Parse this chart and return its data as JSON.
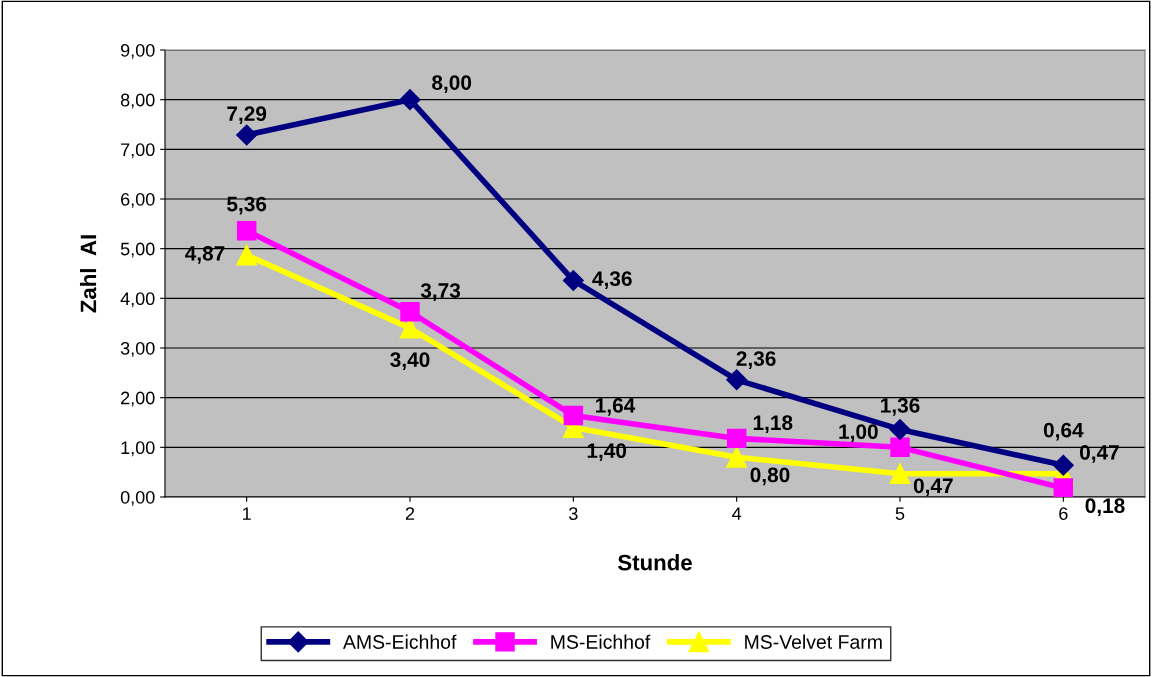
{
  "chart_data": {
    "type": "line",
    "xlabel": "Stunde",
    "ylabel": "Zahl  AI",
    "categories": [
      "1",
      "2",
      "3",
      "4",
      "5",
      "6"
    ],
    "series": [
      {
        "name": "AMS-Eichhof",
        "color": "#000080",
        "marker": "diamond",
        "values": [
          7.29,
          8.0,
          4.36,
          2.36,
          1.36,
          0.64
        ],
        "value_labels": [
          "7,29",
          "8,00",
          "4,36",
          "2,36",
          "1,36",
          "0,64"
        ]
      },
      {
        "name": "MS-Eichhof",
        "color": "#ff00ff",
        "marker": "square",
        "values": [
          5.36,
          3.73,
          1.64,
          1.18,
          1.0,
          0.18
        ],
        "value_labels": [
          "5,36",
          "3,73",
          "1,64",
          "1,18",
          "1,00",
          "0,18"
        ]
      },
      {
        "name": "MS-Velvet Farm",
        "color": "#ffff00",
        "marker": "triangle",
        "values": [
          4.87,
          3.4,
          1.4,
          0.8,
          0.47,
          0.47
        ],
        "value_labels": [
          "4,87",
          "3,40",
          "1,40",
          "0,80",
          "0,47",
          "0,47"
        ]
      }
    ],
    "ylim": [
      0,
      9
    ],
    "yticks": [
      {
        "value": 0,
        "label": "0,00"
      },
      {
        "value": 1,
        "label": "1,00"
      },
      {
        "value": 2,
        "label": "2,00"
      },
      {
        "value": 3,
        "label": "3,00"
      },
      {
        "value": 4,
        "label": "4,00"
      },
      {
        "value": 5,
        "label": "5,00"
      },
      {
        "value": 6,
        "label": "6,00"
      },
      {
        "value": 7,
        "label": "7,00"
      },
      {
        "value": 8,
        "label": "8,00"
      },
      {
        "value": 9,
        "label": "9,00"
      }
    ],
    "grid": "y",
    "legend": "bottom",
    "line_style": "solid"
  }
}
